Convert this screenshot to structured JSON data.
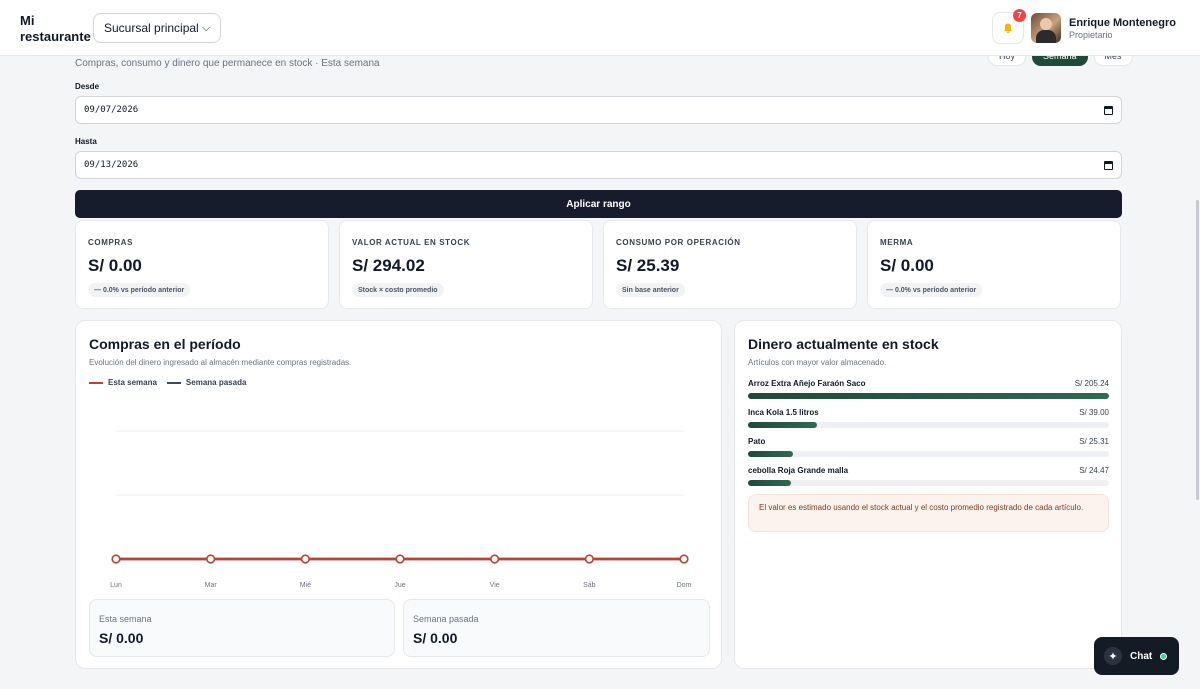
{
  "header": {
    "brand": "Mi restaurante",
    "branch_select": "Sucursal principal",
    "notifications_count": "7",
    "user_name": "Enrique Montenegro",
    "user_role": "Propietario"
  },
  "page": {
    "subtitle": "Compras, consumo y dinero que permanece en stock · Esta semana",
    "period_tabs": [
      "Hoy",
      "Semana",
      "Mes"
    ],
    "active_period": "Semana"
  },
  "filters": {
    "from_label": "Desde",
    "from_value": "09/07/2026",
    "to_label": "Hasta",
    "to_value": "09/13/2026",
    "apply_label": "Aplicar rango"
  },
  "kpis": [
    {
      "label": "COMPRAS",
      "value": "S/ 0.00",
      "note": "— 0.0% vs período anterior"
    },
    {
      "label": "VALOR ACTUAL EN STOCK",
      "value": "S/ 294.02",
      "note": "Stock × costo promedio"
    },
    {
      "label": "CONSUMO POR OPERACIÓN",
      "value": "S/ 25.39",
      "note": "Sin base anterior"
    },
    {
      "label": "MERMA",
      "value": "S/ 0.00",
      "note": "— 0.0% vs período anterior"
    }
  ],
  "purchases": {
    "title": "Compras en el período",
    "description": "Evolución del dinero ingresado al almacén mediante compras registradas.",
    "this_week_label": "Esta semana",
    "this_week_value": "S/ 0.00",
    "last_week_label": "Semana pasada",
    "last_week_value": "S/ 0.00"
  },
  "chart_data": {
    "type": "line",
    "categories": [
      "Lun",
      "Mar",
      "Mié",
      "Jue",
      "Vie",
      "Sáb",
      "Dom"
    ],
    "series": [
      {
        "name": "Esta semana",
        "color": "#c2412d",
        "values": [
          0,
          0,
          0,
          0,
          0,
          0,
          0
        ]
      },
      {
        "name": "Semana pasada",
        "color": "#3b4a6b",
        "values": [
          0,
          0,
          0,
          0,
          0,
          0,
          0
        ]
      }
    ],
    "legend": "top-left",
    "grid": true
  },
  "stock": {
    "title": "Dinero actualmente en stock",
    "description": "Artículos con mayor valor almacenado.",
    "items": [
      {
        "name": "Arroz Extra Añejo Faraón Saco",
        "value": "S/ 205.24",
        "amount": 205.24
      },
      {
        "name": "Inca Kola 1.5 litros",
        "value": "S/ 39.00",
        "amount": 39.0
      },
      {
        "name": "Pato",
        "value": "S/ 25.31",
        "amount": 25.31
      },
      {
        "name": "cebolla Roja Grande malla",
        "value": "S/ 24.47",
        "amount": 24.47
      }
    ],
    "note": "El valor es estimado usando el stock actual y el costo promedio registrado de cada artículo."
  },
  "chat": {
    "label": "Chat"
  }
}
